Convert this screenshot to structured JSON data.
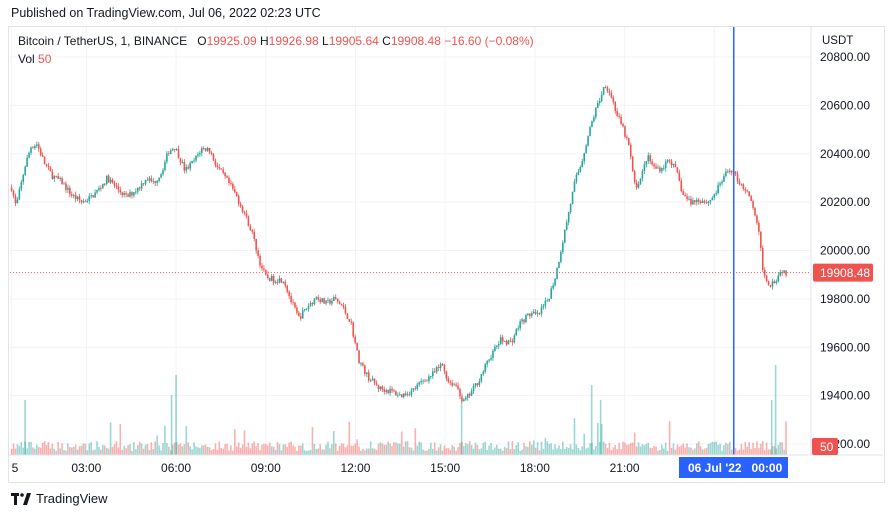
{
  "header": {
    "published": "Published on TradingView.com, Jul 06, 2022 02:23 UTC"
  },
  "legend": {
    "symbol": "Bitcoin / TetherUS, 1, BINANCE",
    "o_label": "O",
    "o_value": "19925.09",
    "h_label": "H",
    "h_value": "19926.98",
    "l_label": "L",
    "l_value": "19905.64",
    "c_label": "C",
    "c_value": "19908.48",
    "change": "−16.60 (−0.08%)",
    "vol_label": "Vol",
    "vol_value": "50"
  },
  "footer": {
    "brand": "TradingView"
  },
  "colors": {
    "up": "#26a69a",
    "down": "#ef5350",
    "crosshair": "#2962ff",
    "grid": "#f0f3fa"
  },
  "chart_data": {
    "type": "candlestick",
    "title": "Bitcoin / TetherUS, 1, BINANCE",
    "y_unit": "USDT",
    "y_ticks": [
      "20800.00",
      "20600.00",
      "20400.00",
      "20200.00",
      "20000.00",
      "19800.00",
      "19600.00",
      "19400.00",
      "19200.00"
    ],
    "ylim": [
      19175,
      20850
    ],
    "x_ticks": [
      "5",
      "03:00",
      "06:00",
      "09:00",
      "12:00",
      "15:00",
      "18:00",
      "21:00",
      "00:00"
    ],
    "x_tick_hours": [
      0.5,
      3,
      6,
      9,
      12,
      15,
      18,
      21,
      24
    ],
    "xlim_hours": [
      0.48,
      27.0
    ],
    "crosshair": {
      "hour": 24.65,
      "label": "06 Jul '22   00:00"
    },
    "last_price": {
      "value": 19908.48,
      "label": "19908.48"
    },
    "last_volume": {
      "label": "50"
    },
    "price_path": [
      [
        0.5,
        20260
      ],
      [
        0.65,
        20180
      ],
      [
        0.95,
        20350
      ],
      [
        1.15,
        20430
      ],
      [
        1.35,
        20440
      ],
      [
        1.6,
        20360
      ],
      [
        1.85,
        20310
      ],
      [
        2.2,
        20280
      ],
      [
        2.5,
        20230
      ],
      [
        2.85,
        20200
      ],
      [
        3.15,
        20220
      ],
      [
        3.4,
        20250
      ],
      [
        3.7,
        20300
      ],
      [
        4.0,
        20260
      ],
      [
        4.35,
        20220
      ],
      [
        4.75,
        20260
      ],
      [
        5.0,
        20300
      ],
      [
        5.25,
        20280
      ],
      [
        5.5,
        20320
      ],
      [
        5.75,
        20410
      ],
      [
        5.95,
        20430
      ],
      [
        6.1,
        20390
      ],
      [
        6.3,
        20330
      ],
      [
        6.6,
        20370
      ],
      [
        6.85,
        20420
      ],
      [
        7.1,
        20420
      ],
      [
        7.35,
        20350
      ],
      [
        7.7,
        20290
      ],
      [
        8.0,
        20230
      ],
      [
        8.3,
        20150
      ],
      [
        8.55,
        20070
      ],
      [
        8.8,
        19950
      ],
      [
        9.0,
        19890
      ],
      [
        9.25,
        19880
      ],
      [
        9.6,
        19880
      ],
      [
        9.85,
        19790
      ],
      [
        10.1,
        19720
      ],
      [
        10.35,
        19760
      ],
      [
        10.7,
        19810
      ],
      [
        11.0,
        19780
      ],
      [
        11.3,
        19800
      ],
      [
        11.55,
        19770
      ],
      [
        11.85,
        19700
      ],
      [
        12.1,
        19550
      ],
      [
        12.4,
        19480
      ],
      [
        12.8,
        19430
      ],
      [
        13.15,
        19420
      ],
      [
        13.5,
        19400
      ],
      [
        13.9,
        19420
      ],
      [
        14.25,
        19460
      ],
      [
        14.6,
        19490
      ],
      [
        14.9,
        19530
      ],
      [
        15.1,
        19460
      ],
      [
        15.4,
        19440
      ],
      [
        15.6,
        19370
      ],
      [
        15.85,
        19410
      ],
      [
        16.15,
        19470
      ],
      [
        16.5,
        19560
      ],
      [
        16.85,
        19630
      ],
      [
        17.2,
        19620
      ],
      [
        17.5,
        19700
      ],
      [
        17.85,
        19740
      ],
      [
        18.1,
        19730
      ],
      [
        18.45,
        19800
      ],
      [
        18.7,
        19900
      ],
      [
        18.95,
        20050
      ],
      [
        19.15,
        20170
      ],
      [
        19.35,
        20290
      ],
      [
        19.55,
        20360
      ],
      [
        19.75,
        20460
      ],
      [
        19.95,
        20550
      ],
      [
        20.15,
        20620
      ],
      [
        20.35,
        20690
      ],
      [
        20.55,
        20640
      ],
      [
        20.75,
        20560
      ],
      [
        20.95,
        20500
      ],
      [
        21.15,
        20430
      ],
      [
        21.35,
        20260
      ],
      [
        21.55,
        20300
      ],
      [
        21.75,
        20390
      ],
      [
        22.0,
        20340
      ],
      [
        22.25,
        20340
      ],
      [
        22.5,
        20380
      ],
      [
        22.75,
        20320
      ],
      [
        22.95,
        20230
      ],
      [
        23.2,
        20200
      ],
      [
        23.5,
        20210
      ],
      [
        23.8,
        20200
      ],
      [
        24.05,
        20240
      ],
      [
        24.3,
        20300
      ],
      [
        24.55,
        20340
      ],
      [
        24.8,
        20290
      ],
      [
        25.05,
        20250
      ],
      [
        25.3,
        20180
      ],
      [
        25.5,
        20060
      ],
      [
        25.65,
        19900
      ],
      [
        25.85,
        19860
      ],
      [
        26.05,
        19880
      ],
      [
        26.25,
        19920
      ],
      [
        26.4,
        19908
      ]
    ],
    "volume_spikes": [
      [
        0.95,
        0.55
      ],
      [
        6.0,
        0.8
      ],
      [
        5.85,
        0.6
      ],
      [
        15.55,
        0.55
      ],
      [
        19.9,
        0.7
      ],
      [
        20.2,
        0.55
      ],
      [
        26.05,
        0.9
      ],
      [
        25.92,
        0.55
      ]
    ]
  }
}
